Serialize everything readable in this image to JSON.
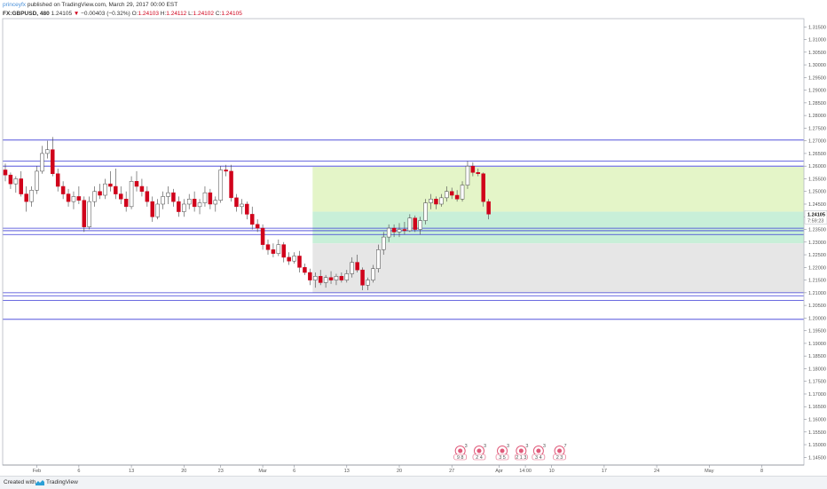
{
  "header": {
    "author": "princeyfx",
    "published": "published on TradingView.com, March 29, 2017 00:00 EST",
    "symbol": "FX:GBPUSD, 480",
    "last": "1.24105",
    "change": "−0.00403 (−0.32%)",
    "open_label": "O:",
    "open": "1.24103",
    "high_label": "H:",
    "high": "1.24112",
    "low_label": "L:",
    "low": "1.24102",
    "close_label": "C:",
    "close": "1.24105"
  },
  "footer": {
    "created_with": "Created with",
    "brand": "TradingView"
  },
  "colors": {
    "up_candle": "#ffffff",
    "down_candle": "#d0021b",
    "level_line": "#3b3bd6",
    "profit_zone": "#e4f5c8",
    "profit_zone_dark": "#c8efd8",
    "loss_zone": "#e6e6e6"
  },
  "chart_data": {
    "type": "candlestick",
    "ylim": [
      1.144,
      1.317
    ],
    "y_ticks": [
      "1.31500",
      "1.31000",
      "1.30500",
      "1.30000",
      "1.29500",
      "1.29000",
      "1.28500",
      "1.28000",
      "1.27500",
      "1.27000",
      "1.26500",
      "1.26000",
      "1.25500",
      "1.25000",
      "1.24500",
      "1.24000",
      "1.23500",
      "1.23000",
      "1.22500",
      "1.22000",
      "1.21500",
      "1.21000",
      "1.20500",
      "1.20000",
      "1.19500",
      "1.19000",
      "1.18500",
      "1.18000",
      "1.17500",
      "1.17000",
      "1.16500",
      "1.16000",
      "1.15500",
      "1.15000",
      "1.14500"
    ],
    "x_labels": [
      {
        "label": "Feb",
        "slot": 6
      },
      {
        "label": "6",
        "slot": 14
      },
      {
        "label": "13",
        "slot": 24
      },
      {
        "label": "20",
        "slot": 34
      },
      {
        "label": "23",
        "slot": 41
      },
      {
        "label": "Mar",
        "slot": 49
      },
      {
        "label": "6",
        "slot": 55
      },
      {
        "label": "13",
        "slot": 65
      },
      {
        "label": "20",
        "slot": 75
      },
      {
        "label": "27",
        "slot": 85
      },
      {
        "label": "Apr",
        "slot": 94
      },
      {
        "label": "14:00",
        "slot": 99
      },
      {
        "label": "10",
        "slot": 104
      },
      {
        "label": "17",
        "slot": 114
      },
      {
        "label": "24",
        "slot": 124
      },
      {
        "label": "May",
        "slot": 134
      },
      {
        "label": "8",
        "slot": 144
      }
    ],
    "price_label": "1.24105",
    "countdown_label": "7:59:23",
    "horizontal_levels": [
      1.2703,
      1.262,
      1.26,
      1.2355,
      1.2345,
      1.233,
      1.21,
      1.2088,
      1.207,
      1.1995
    ],
    "profit_zone": {
      "from_slot": 58.5,
      "to_slot": 147,
      "top": 1.2597,
      "bottom": 1.2295,
      "split": 1.242
    },
    "loss_zone": {
      "from_slot": 58.5,
      "to_slot": 147,
      "top": 1.2295,
      "bottom": 1.21
    },
    "candles": [
      {
        "o": 1.2585,
        "h": 1.261,
        "l": 1.254,
        "c": 1.2565
      },
      {
        "o": 1.2565,
        "h": 1.2575,
        "l": 1.251,
        "c": 1.253
      },
      {
        "o": 1.253,
        "h": 1.256,
        "l": 1.2495,
        "c": 1.255
      },
      {
        "o": 1.255,
        "h": 1.258,
        "l": 1.248,
        "c": 1.249
      },
      {
        "o": 1.249,
        "h": 1.252,
        "l": 1.242,
        "c": 1.246
      },
      {
        "o": 1.246,
        "h": 1.252,
        "l": 1.244,
        "c": 1.2505
      },
      {
        "o": 1.2505,
        "h": 1.26,
        "l": 1.249,
        "c": 1.258
      },
      {
        "o": 1.258,
        "h": 1.268,
        "l": 1.257,
        "c": 1.265
      },
      {
        "o": 1.265,
        "h": 1.27,
        "l": 1.263,
        "c": 1.2665
      },
      {
        "o": 1.2665,
        "h": 1.2715,
        "l": 1.256,
        "c": 1.257
      },
      {
        "o": 1.257,
        "h": 1.259,
        "l": 1.25,
        "c": 1.252
      },
      {
        "o": 1.252,
        "h": 1.254,
        "l": 1.247,
        "c": 1.249
      },
      {
        "o": 1.249,
        "h": 1.251,
        "l": 1.244,
        "c": 1.246
      },
      {
        "o": 1.246,
        "h": 1.25,
        "l": 1.243,
        "c": 1.248
      },
      {
        "o": 1.248,
        "h": 1.252,
        "l": 1.245,
        "c": 1.2465
      },
      {
        "o": 1.2465,
        "h": 1.248,
        "l": 1.234,
        "c": 1.236
      },
      {
        "o": 1.236,
        "h": 1.248,
        "l": 1.235,
        "c": 1.246
      },
      {
        "o": 1.246,
        "h": 1.252,
        "l": 1.244,
        "c": 1.25
      },
      {
        "o": 1.25,
        "h": 1.253,
        "l": 1.247,
        "c": 1.2485
      },
      {
        "o": 1.2485,
        "h": 1.255,
        "l": 1.247,
        "c": 1.253
      },
      {
        "o": 1.253,
        "h": 1.258,
        "l": 1.25,
        "c": 1.252
      },
      {
        "o": 1.252,
        "h": 1.259,
        "l": 1.247,
        "c": 1.249
      },
      {
        "o": 1.249,
        "h": 1.252,
        "l": 1.245,
        "c": 1.247
      },
      {
        "o": 1.247,
        "h": 1.25,
        "l": 1.242,
        "c": 1.244
      },
      {
        "o": 1.244,
        "h": 1.256,
        "l": 1.243,
        "c": 1.254
      },
      {
        "o": 1.254,
        "h": 1.258,
        "l": 1.25,
        "c": 1.252
      },
      {
        "o": 1.252,
        "h": 1.255,
        "l": 1.248,
        "c": 1.25
      },
      {
        "o": 1.25,
        "h": 1.252,
        "l": 1.244,
        "c": 1.246
      },
      {
        "o": 1.246,
        "h": 1.248,
        "l": 1.238,
        "c": 1.24
      },
      {
        "o": 1.24,
        "h": 1.247,
        "l": 1.239,
        "c": 1.245
      },
      {
        "o": 1.245,
        "h": 1.25,
        "l": 1.243,
        "c": 1.248
      },
      {
        "o": 1.248,
        "h": 1.252,
        "l": 1.245,
        "c": 1.2495
      },
      {
        "o": 1.2495,
        "h": 1.251,
        "l": 1.244,
        "c": 1.246
      },
      {
        "o": 1.246,
        "h": 1.248,
        "l": 1.24,
        "c": 1.242
      },
      {
        "o": 1.242,
        "h": 1.247,
        "l": 1.24,
        "c": 1.245
      },
      {
        "o": 1.245,
        "h": 1.249,
        "l": 1.243,
        "c": 1.247
      },
      {
        "o": 1.247,
        "h": 1.25,
        "l": 1.242,
        "c": 1.244
      },
      {
        "o": 1.244,
        "h": 1.247,
        "l": 1.241,
        "c": 1.2455
      },
      {
        "o": 1.2455,
        "h": 1.252,
        "l": 1.244,
        "c": 1.2495
      },
      {
        "o": 1.2495,
        "h": 1.251,
        "l": 1.243,
        "c": 1.245
      },
      {
        "o": 1.245,
        "h": 1.248,
        "l": 1.242,
        "c": 1.2465
      },
      {
        "o": 1.2465,
        "h": 1.26,
        "l": 1.2455,
        "c": 1.2585
      },
      {
        "o": 1.2585,
        "h": 1.2605,
        "l": 1.256,
        "c": 1.258
      },
      {
        "o": 1.258,
        "h": 1.2605,
        "l": 1.246,
        "c": 1.2475
      },
      {
        "o": 1.2475,
        "h": 1.249,
        "l": 1.242,
        "c": 1.244
      },
      {
        "o": 1.244,
        "h": 1.247,
        "l": 1.241,
        "c": 1.245
      },
      {
        "o": 1.245,
        "h": 1.246,
        "l": 1.239,
        "c": 1.241
      },
      {
        "o": 1.241,
        "h": 1.244,
        "l": 1.235,
        "c": 1.237
      },
      {
        "o": 1.237,
        "h": 1.239,
        "l": 1.234,
        "c": 1.2355
      },
      {
        "o": 1.2355,
        "h": 1.237,
        "l": 1.227,
        "c": 1.229
      },
      {
        "o": 1.229,
        "h": 1.231,
        "l": 1.225,
        "c": 1.227
      },
      {
        "o": 1.227,
        "h": 1.2295,
        "l": 1.224,
        "c": 1.2255
      },
      {
        "o": 1.2255,
        "h": 1.231,
        "l": 1.2245,
        "c": 1.229
      },
      {
        "o": 1.229,
        "h": 1.23,
        "l": 1.222,
        "c": 1.224
      },
      {
        "o": 1.224,
        "h": 1.226,
        "l": 1.221,
        "c": 1.2225
      },
      {
        "o": 1.2225,
        "h": 1.226,
        "l": 1.2215,
        "c": 1.2245
      },
      {
        "o": 1.2245,
        "h": 1.2265,
        "l": 1.218,
        "c": 1.22
      },
      {
        "o": 1.22,
        "h": 1.2215,
        "l": 1.217,
        "c": 1.218
      },
      {
        "o": 1.218,
        "h": 1.2195,
        "l": 1.213,
        "c": 1.215
      },
      {
        "o": 1.215,
        "h": 1.218,
        "l": 1.212,
        "c": 1.2165
      },
      {
        "o": 1.2165,
        "h": 1.219,
        "l": 1.213,
        "c": 1.214
      },
      {
        "o": 1.214,
        "h": 1.217,
        "l": 1.212,
        "c": 1.216
      },
      {
        "o": 1.216,
        "h": 1.2185,
        "l": 1.2135,
        "c": 1.215
      },
      {
        "o": 1.215,
        "h": 1.2175,
        "l": 1.213,
        "c": 1.2165
      },
      {
        "o": 1.2165,
        "h": 1.218,
        "l": 1.214,
        "c": 1.215
      },
      {
        "o": 1.215,
        "h": 1.219,
        "l": 1.214,
        "c": 1.2175
      },
      {
        "o": 1.2175,
        "h": 1.224,
        "l": 1.216,
        "c": 1.222
      },
      {
        "o": 1.222,
        "h": 1.225,
        "l": 1.218,
        "c": 1.219
      },
      {
        "o": 1.219,
        "h": 1.22,
        "l": 1.211,
        "c": 1.213
      },
      {
        "o": 1.213,
        "h": 1.216,
        "l": 1.211,
        "c": 1.215
      },
      {
        "o": 1.215,
        "h": 1.221,
        "l": 1.214,
        "c": 1.2195
      },
      {
        "o": 1.2195,
        "h": 1.229,
        "l": 1.218,
        "c": 1.227
      },
      {
        "o": 1.227,
        "h": 1.234,
        "l": 1.225,
        "c": 1.232
      },
      {
        "o": 1.232,
        "h": 1.237,
        "l": 1.23,
        "c": 1.2355
      },
      {
        "o": 1.2355,
        "h": 1.237,
        "l": 1.232,
        "c": 1.234
      },
      {
        "o": 1.234,
        "h": 1.2375,
        "l": 1.232,
        "c": 1.235
      },
      {
        "o": 1.235,
        "h": 1.238,
        "l": 1.233,
        "c": 1.2345
      },
      {
        "o": 1.2345,
        "h": 1.241,
        "l": 1.234,
        "c": 1.2395
      },
      {
        "o": 1.2395,
        "h": 1.2405,
        "l": 1.234,
        "c": 1.235
      },
      {
        "o": 1.235,
        "h": 1.24,
        "l": 1.233,
        "c": 1.2385
      },
      {
        "o": 1.2385,
        "h": 1.247,
        "l": 1.237,
        "c": 1.2455
      },
      {
        "o": 1.2455,
        "h": 1.249,
        "l": 1.243,
        "c": 1.247
      },
      {
        "o": 1.247,
        "h": 1.248,
        "l": 1.243,
        "c": 1.245
      },
      {
        "o": 1.245,
        "h": 1.249,
        "l": 1.244,
        "c": 1.2475
      },
      {
        "o": 1.2475,
        "h": 1.252,
        "l": 1.246,
        "c": 1.25
      },
      {
        "o": 1.25,
        "h": 1.2515,
        "l": 1.247,
        "c": 1.2485
      },
      {
        "o": 1.2485,
        "h": 1.2505,
        "l": 1.246,
        "c": 1.247
      },
      {
        "o": 1.247,
        "h": 1.254,
        "l": 1.246,
        "c": 1.2525
      },
      {
        "o": 1.2525,
        "h": 1.262,
        "l": 1.251,
        "c": 1.26
      },
      {
        "o": 1.26,
        "h": 1.2615,
        "l": 1.256,
        "c": 1.2575
      },
      {
        "o": 1.2575,
        "h": 1.259,
        "l": 1.256,
        "c": 1.257
      },
      {
        "o": 1.257,
        "h": 1.2575,
        "l": 1.244,
        "c": 1.246
      },
      {
        "o": 1.246,
        "h": 1.247,
        "l": 1.239,
        "c": 1.24105
      }
    ],
    "news_markers": [
      {
        "slot": 86.6,
        "label": "3",
        "row": "9 8"
      },
      {
        "slot": 90.2,
        "label": "3",
        "row": "2 4"
      },
      {
        "slot": 94.6,
        "label": "3",
        "row": "3 5"
      },
      {
        "slot": 98.2,
        "label": "3",
        "row": "2 1 3"
      },
      {
        "slot": 101.5,
        "label": "3",
        "row": "3 4"
      },
      {
        "slot": 105.5,
        "label": "7",
        "row": "2 3"
      }
    ]
  }
}
